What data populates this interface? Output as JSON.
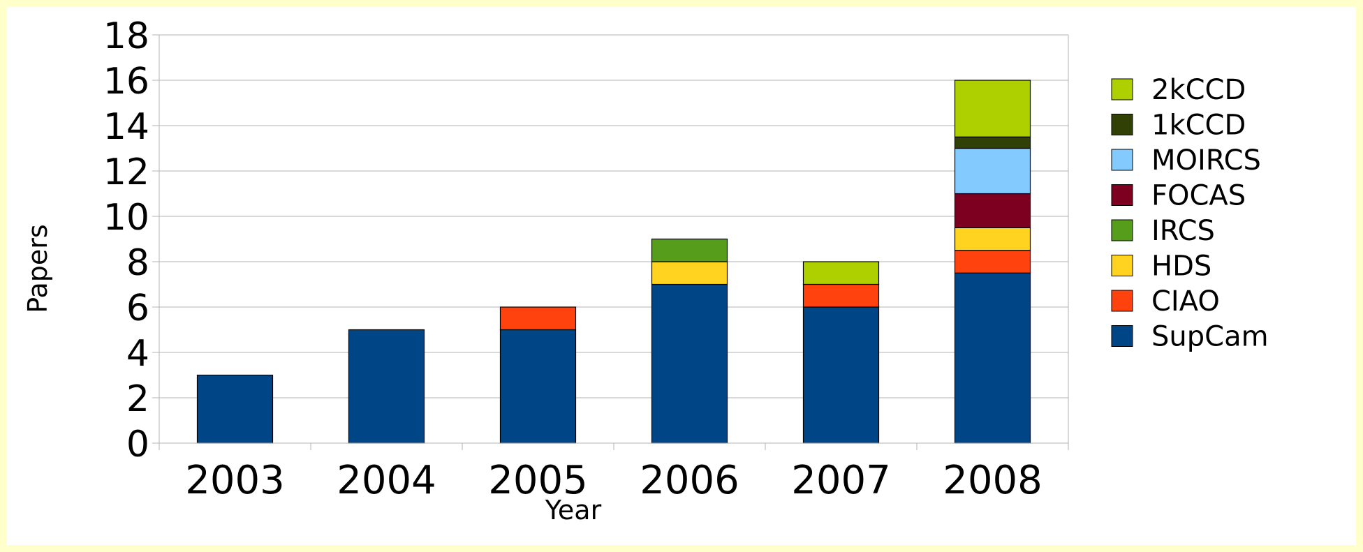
{
  "chart_data": {
    "type": "bar",
    "stacked": true,
    "categories": [
      "2003",
      "2004",
      "2005",
      "2006",
      "2007",
      "2008"
    ],
    "series": [
      {
        "name": "SupCam",
        "color": "#004586",
        "values": [
          3,
          5,
          5,
          7,
          6,
          7.5
        ]
      },
      {
        "name": "CIAO",
        "color": "#ff420e",
        "values": [
          0,
          0,
          1,
          0,
          1,
          1
        ]
      },
      {
        "name": "HDS",
        "color": "#ffd320",
        "values": [
          0,
          0,
          0,
          1,
          0,
          1
        ]
      },
      {
        "name": "IRCS",
        "color": "#579d1c",
        "values": [
          0,
          0,
          0,
          1,
          0,
          0
        ]
      },
      {
        "name": "FOCAS",
        "color": "#7e0021",
        "values": [
          0,
          0,
          0,
          0,
          0,
          1.5
        ]
      },
      {
        "name": "MOIRCS",
        "color": "#83caff",
        "values": [
          0,
          0,
          0,
          0,
          0,
          2
        ]
      },
      {
        "name": "1kCCD",
        "color": "#314004",
        "values": [
          0,
          0,
          0,
          0,
          0,
          0.5
        ]
      },
      {
        "name": "2kCCD",
        "color": "#aecf00",
        "values": [
          0,
          0,
          0,
          0,
          1,
          2.5
        ]
      }
    ],
    "title": "",
    "xlabel": "Year",
    "ylabel": "Papers",
    "ylim": [
      0,
      18
    ],
    "yticks": [
      "0",
      "2",
      "4",
      "6",
      "8",
      "10",
      "12",
      "14",
      "16",
      "18"
    ],
    "grid": true,
    "legend_position": "right"
  }
}
